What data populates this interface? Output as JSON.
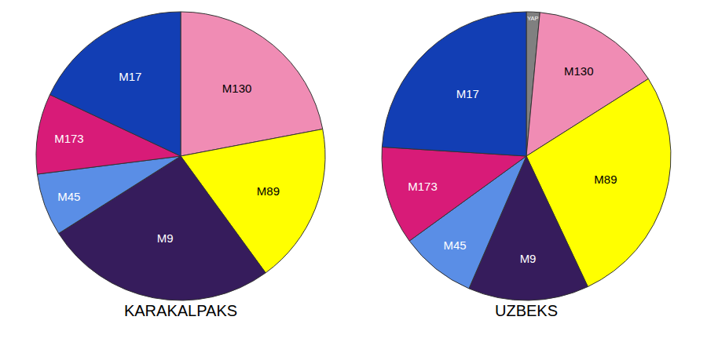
{
  "chart_data": [
    {
      "type": "pie",
      "title": "KARAKALPAKS",
      "categories": [
        "M130",
        "M89",
        "M9",
        "M45",
        "M173",
        "M17"
      ],
      "values": [
        22,
        18,
        26,
        7,
        9,
        18
      ],
      "colors": [
        "#f08cb4",
        "#ffff00",
        "#361c5c",
        "#5a8ee6",
        "#d81b78",
        "#123eb4"
      ]
    },
    {
      "type": "pie",
      "title": "UZBEKS",
      "categories": [
        "YAP",
        "M130",
        "M89",
        "M9",
        "M45",
        "M173",
        "M17"
      ],
      "values": [
        1.5,
        14.5,
        27,
        13.5,
        8.5,
        11,
        24
      ],
      "colors": [
        "#808080",
        "#f08cb4",
        "#ffff00",
        "#361c5c",
        "#5a8ee6",
        "#d81b78",
        "#123eb4"
      ]
    }
  ]
}
